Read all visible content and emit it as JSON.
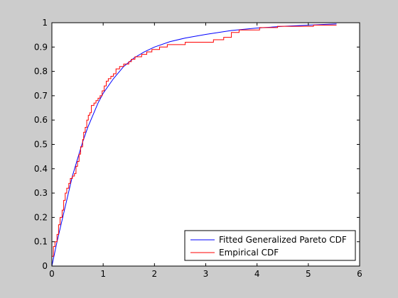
{
  "chart_data": {
    "type": "line",
    "title": "",
    "xlabel": "",
    "ylabel": "",
    "xlim": [
      0,
      6
    ],
    "ylim": [
      0,
      1
    ],
    "x_ticks": [
      0,
      1,
      2,
      3,
      4,
      5,
      6
    ],
    "x_tick_labels": [
      "0",
      "1",
      "2",
      "3",
      "4",
      "5",
      "6"
    ],
    "y_ticks": [
      0,
      0.1,
      0.2,
      0.3,
      0.4,
      0.5,
      0.6,
      0.7,
      0.8,
      0.9,
      1
    ],
    "y_tick_labels": [
      "0",
      "0.1",
      "0.2",
      "0.3",
      "0.4",
      "0.5",
      "0.6",
      "0.7",
      "0.8",
      "0.9",
      "1"
    ],
    "grid": false,
    "legend_position": "bottom-right",
    "colors": {
      "figure_bg": "#cccccc",
      "axes_bg": "#ffffff",
      "axis": "#000000"
    },
    "series": [
      {
        "name": "Fitted Generalized Pareto CDF",
        "style": "smooth",
        "color": "#0000ff",
        "points": [
          [
            0,
            0
          ],
          [
            0.1,
            0.1
          ],
          [
            0.2,
            0.19
          ],
          [
            0.3,
            0.28
          ],
          [
            0.4,
            0.37
          ],
          [
            0.5,
            0.44
          ],
          [
            0.6,
            0.51
          ],
          [
            0.7,
            0.57
          ],
          [
            0.8,
            0.62
          ],
          [
            0.9,
            0.67
          ],
          [
            1.0,
            0.71
          ],
          [
            1.2,
            0.77
          ],
          [
            1.4,
            0.82
          ],
          [
            1.6,
            0.855
          ],
          [
            1.8,
            0.88
          ],
          [
            2.0,
            0.9
          ],
          [
            2.3,
            0.922
          ],
          [
            2.6,
            0.937
          ],
          [
            3.0,
            0.952
          ],
          [
            3.5,
            0.968
          ],
          [
            4.0,
            0.978
          ],
          [
            4.5,
            0.985
          ],
          [
            5.0,
            0.99
          ],
          [
            5.55,
            0.995
          ]
        ]
      },
      {
        "name": "Empirical CDF",
        "style": "step",
        "color": "#ff0000",
        "points": [
          [
            0,
            0.04
          ],
          [
            0.03,
            0.08
          ],
          [
            0.06,
            0.1
          ],
          [
            0.1,
            0.13
          ],
          [
            0.13,
            0.17
          ],
          [
            0.16,
            0.2
          ],
          [
            0.2,
            0.23
          ],
          [
            0.23,
            0.27
          ],
          [
            0.26,
            0.3
          ],
          [
            0.29,
            0.32
          ],
          [
            0.33,
            0.34
          ],
          [
            0.36,
            0.36
          ],
          [
            0.4,
            0.37
          ],
          [
            0.44,
            0.38
          ],
          [
            0.47,
            0.41
          ],
          [
            0.5,
            0.43
          ],
          [
            0.53,
            0.46
          ],
          [
            0.56,
            0.49
          ],
          [
            0.6,
            0.52
          ],
          [
            0.62,
            0.55
          ],
          [
            0.65,
            0.57
          ],
          [
            0.68,
            0.6
          ],
          [
            0.71,
            0.62
          ],
          [
            0.74,
            0.63
          ],
          [
            0.77,
            0.66
          ],
          [
            0.82,
            0.67
          ],
          [
            0.86,
            0.68
          ],
          [
            0.9,
            0.69
          ],
          [
            0.94,
            0.7
          ],
          [
            0.98,
            0.72
          ],
          [
            1.02,
            0.74
          ],
          [
            1.06,
            0.76
          ],
          [
            1.1,
            0.77
          ],
          [
            1.15,
            0.78
          ],
          [
            1.2,
            0.79
          ],
          [
            1.25,
            0.81
          ],
          [
            1.32,
            0.82
          ],
          [
            1.4,
            0.83
          ],
          [
            1.5,
            0.84
          ],
          [
            1.55,
            0.85
          ],
          [
            1.62,
            0.86
          ],
          [
            1.75,
            0.87
          ],
          [
            1.85,
            0.88
          ],
          [
            1.95,
            0.89
          ],
          [
            2.1,
            0.9
          ],
          [
            2.25,
            0.91
          ],
          [
            2.6,
            0.92
          ],
          [
            3.15,
            0.93
          ],
          [
            3.35,
            0.94
          ],
          [
            3.5,
            0.96
          ],
          [
            3.65,
            0.97
          ],
          [
            4.05,
            0.98
          ],
          [
            4.4,
            0.985
          ],
          [
            5.1,
            0.99
          ],
          [
            5.55,
            0.99
          ]
        ]
      }
    ]
  }
}
